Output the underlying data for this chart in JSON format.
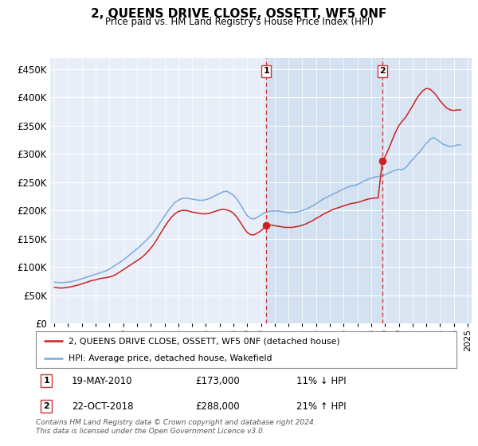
{
  "title": "2, QUEENS DRIVE CLOSE, OSSETT, WF5 0NF",
  "subtitle": "Price paid vs. HM Land Registry's House Price Index (HPI)",
  "ylim": [
    0,
    470000
  ],
  "yticks": [
    0,
    50000,
    100000,
    150000,
    200000,
    250000,
    300000,
    350000,
    400000,
    450000
  ],
  "xlim_start": 1994.7,
  "xlim_end": 2025.3,
  "sale1_x": 2010.38,
  "sale1_y": 173000,
  "sale2_x": 2018.81,
  "sale2_y": 288000,
  "legend_line1": "2, QUEENS DRIVE CLOSE, OSSETT, WF5 0NF (detached house)",
  "legend_line2": "HPI: Average price, detached house, Wakefield",
  "annotation1_date": "19-MAY-2010",
  "annotation1_price": "£173,000",
  "annotation1_hpi": "11% ↓ HPI",
  "annotation2_date": "22-OCT-2018",
  "annotation2_price": "£288,000",
  "annotation2_hpi": "21% ↑ HPI",
  "footer": "Contains HM Land Registry data © Crown copyright and database right 2024.\nThis data is licensed under the Open Government Licence v3.0.",
  "hpi_color": "#7aaadd",
  "price_color": "#cc2222",
  "bg_chart": "#e8eef8",
  "bg_figure": "#ffffff",
  "vline_color": "#cc3333",
  "shade_color": "#d0dff0",
  "hpi_data_x": [
    1995.0,
    1995.25,
    1995.5,
    1995.75,
    1996.0,
    1996.25,
    1996.5,
    1996.75,
    1997.0,
    1997.25,
    1997.5,
    1997.75,
    1998.0,
    1998.25,
    1998.5,
    1998.75,
    1999.0,
    1999.25,
    1999.5,
    1999.75,
    2000.0,
    2000.25,
    2000.5,
    2000.75,
    2001.0,
    2001.25,
    2001.5,
    2001.75,
    2002.0,
    2002.25,
    2002.5,
    2002.75,
    2003.0,
    2003.25,
    2003.5,
    2003.75,
    2004.0,
    2004.25,
    2004.5,
    2004.75,
    2005.0,
    2005.25,
    2005.5,
    2005.75,
    2006.0,
    2006.25,
    2006.5,
    2006.75,
    2007.0,
    2007.25,
    2007.5,
    2007.75,
    2008.0,
    2008.25,
    2008.5,
    2008.75,
    2009.0,
    2009.25,
    2009.5,
    2009.75,
    2010.0,
    2010.25,
    2010.5,
    2010.75,
    2011.0,
    2011.25,
    2011.5,
    2011.75,
    2012.0,
    2012.25,
    2012.5,
    2012.75,
    2013.0,
    2013.25,
    2013.5,
    2013.75,
    2014.0,
    2014.25,
    2014.5,
    2014.75,
    2015.0,
    2015.25,
    2015.5,
    2015.75,
    2016.0,
    2016.25,
    2016.5,
    2016.75,
    2017.0,
    2017.25,
    2017.5,
    2017.75,
    2018.0,
    2018.25,
    2018.5,
    2018.75,
    2019.0,
    2019.25,
    2019.5,
    2019.75,
    2020.0,
    2020.25,
    2020.5,
    2020.75,
    2021.0,
    2021.25,
    2021.5,
    2021.75,
    2022.0,
    2022.25,
    2022.5,
    2022.75,
    2023.0,
    2023.25,
    2023.5,
    2023.75,
    2024.0,
    2024.25,
    2024.5
  ],
  "hpi_data_y": [
    73000,
    72500,
    72000,
    72500,
    73000,
    74000,
    75500,
    77000,
    79000,
    81000,
    83000,
    85000,
    87000,
    89000,
    91000,
    93000,
    96000,
    100000,
    104000,
    108000,
    112000,
    117000,
    122000,
    127000,
    132000,
    137000,
    143000,
    149000,
    155000,
    163000,
    172000,
    181000,
    190000,
    199000,
    207000,
    214000,
    218000,
    221000,
    222000,
    221000,
    220000,
    219000,
    218000,
    218000,
    219000,
    221000,
    224000,
    227000,
    230000,
    233000,
    234000,
    231000,
    227000,
    220000,
    211000,
    200000,
    191000,
    186000,
    185000,
    188000,
    192000,
    196000,
    198000,
    199000,
    199000,
    199000,
    198000,
    197000,
    196000,
    196000,
    197000,
    198000,
    200000,
    202000,
    205000,
    208000,
    212000,
    216000,
    220000,
    223000,
    226000,
    229000,
    232000,
    235000,
    238000,
    241000,
    243000,
    244000,
    246000,
    249000,
    252000,
    255000,
    257000,
    259000,
    260000,
    261000,
    263000,
    266000,
    269000,
    271000,
    273000,
    272000,
    276000,
    283000,
    290000,
    297000,
    303000,
    311000,
    319000,
    325000,
    329000,
    326000,
    321000,
    317000,
    315000,
    313000,
    314000,
    316000,
    316000
  ],
  "price_data_x": [
    1995.0,
    1995.25,
    1995.5,
    1995.75,
    1996.0,
    1996.25,
    1996.5,
    1996.75,
    1997.0,
    1997.25,
    1997.5,
    1997.75,
    1998.0,
    1998.25,
    1998.5,
    1998.75,
    1999.0,
    1999.25,
    1999.5,
    1999.75,
    2000.0,
    2000.25,
    2000.5,
    2000.75,
    2001.0,
    2001.25,
    2001.5,
    2001.75,
    2002.0,
    2002.25,
    2002.5,
    2002.75,
    2003.0,
    2003.25,
    2003.5,
    2003.75,
    2004.0,
    2004.25,
    2004.5,
    2004.75,
    2005.0,
    2005.25,
    2005.5,
    2005.75,
    2006.0,
    2006.25,
    2006.5,
    2006.75,
    2007.0,
    2007.25,
    2007.5,
    2007.75,
    2008.0,
    2008.25,
    2008.5,
    2008.75,
    2009.0,
    2009.25,
    2009.5,
    2009.75,
    2010.0,
    2010.38,
    2010.5,
    2010.75,
    2011.0,
    2011.25,
    2011.5,
    2011.75,
    2012.0,
    2012.25,
    2012.5,
    2012.75,
    2013.0,
    2013.25,
    2013.5,
    2013.75,
    2014.0,
    2014.25,
    2014.5,
    2014.75,
    2015.0,
    2015.25,
    2015.5,
    2015.75,
    2016.0,
    2016.25,
    2016.5,
    2016.75,
    2017.0,
    2017.25,
    2017.5,
    2017.75,
    2018.0,
    2018.25,
    2018.5,
    2018.81,
    2019.0,
    2019.25,
    2019.5,
    2019.75,
    2020.0,
    2020.25,
    2020.5,
    2020.75,
    2021.0,
    2021.25,
    2021.5,
    2021.75,
    2022.0,
    2022.25,
    2022.5,
    2022.75,
    2023.0,
    2023.25,
    2023.5,
    2023.75,
    2024.0,
    2024.25,
    2024.5
  ],
  "price_data_y": [
    64000,
    63000,
    62500,
    63000,
    64000,
    65000,
    66500,
    68000,
    70000,
    72000,
    74000,
    76000,
    77000,
    79000,
    80000,
    81000,
    82000,
    84000,
    87000,
    91000,
    95000,
    99000,
    103000,
    107000,
    111000,
    115000,
    120000,
    126000,
    133000,
    141000,
    151000,
    161000,
    171000,
    180000,
    188000,
    194000,
    198000,
    200000,
    200000,
    199000,
    197000,
    196000,
    195000,
    194000,
    194000,
    195000,
    197000,
    199000,
    201000,
    202000,
    201000,
    199000,
    195000,
    188000,
    179000,
    169000,
    161000,
    157000,
    157000,
    160000,
    164000,
    173000,
    174000,
    174000,
    173000,
    172000,
    171000,
    170000,
    170000,
    170000,
    171000,
    172000,
    174000,
    176000,
    179000,
    182000,
    186000,
    189000,
    193000,
    196000,
    199000,
    202000,
    204000,
    206000,
    208000,
    210000,
    212000,
    213000,
    214000,
    216000,
    218000,
    220000,
    221000,
    222000,
    222000,
    288000,
    295000,
    308000,
    323000,
    338000,
    350000,
    358000,
    365000,
    375000,
    385000,
    396000,
    405000,
    412000,
    416000,
    415000,
    410000,
    403000,
    394000,
    387000,
    381000,
    378000,
    377000,
    378000,
    378000
  ]
}
